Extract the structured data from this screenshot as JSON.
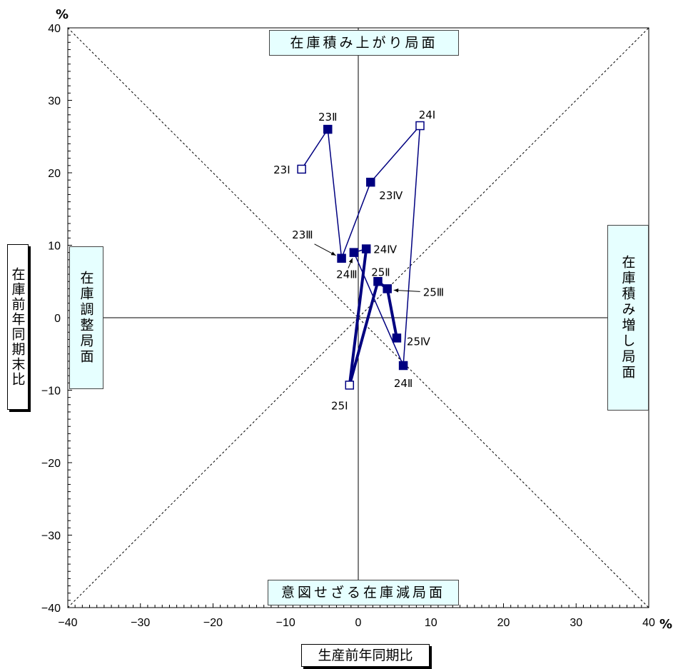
{
  "chart_data": {
    "type": "scatter",
    "xlabel": "生産前年同期比",
    "ylabel": "在庫前年同期末比",
    "x_unit": "%",
    "y_unit": "%",
    "xlim": [
      -40,
      40
    ],
    "ylim": [
      -40,
      40
    ],
    "xticks": [
      "−40",
      "−30",
      "−20",
      "−10",
      "0",
      "10",
      "20",
      "30",
      "40"
    ],
    "yticks": [
      "−40",
      "−30",
      "−20",
      "−10",
      "0",
      "10",
      "20",
      "30",
      "40"
    ],
    "points": [
      {
        "label": "23Ⅰ",
        "x": -7.8,
        "y": 20.5,
        "filled": false
      },
      {
        "label": "23Ⅱ",
        "x": -4.2,
        "y": 26.0,
        "filled": true
      },
      {
        "label": "23Ⅲ",
        "x": -2.3,
        "y": 8.2,
        "filled": true
      },
      {
        "label": "23Ⅳ",
        "x": 1.7,
        "y": 18.7,
        "filled": true
      },
      {
        "label": "24Ⅰ",
        "x": 8.5,
        "y": 26.5,
        "filled": false
      },
      {
        "label": "24Ⅱ",
        "x": 6.2,
        "y": -6.6,
        "filled": true
      },
      {
        "label": "24Ⅲ",
        "x": -0.6,
        "y": 9.0,
        "filled": true
      },
      {
        "label": "24Ⅳ",
        "x": 1.1,
        "y": 9.5,
        "filled": true
      },
      {
        "label": "25Ⅰ",
        "x": -1.2,
        "y": -9.3,
        "filled": false
      },
      {
        "label": "25Ⅱ",
        "x": 2.7,
        "y": 5.0,
        "filled": true
      },
      {
        "label": "25Ⅲ",
        "x": 4.0,
        "y": 4.0,
        "filled": true
      },
      {
        "label": "25Ⅳ",
        "x": 5.3,
        "y": -2.8,
        "filled": true
      }
    ],
    "grid": false
  },
  "quadrants": {
    "top": "在庫積み上がり局面",
    "bottom": "意図せざる在庫減局面",
    "left": "在庫調整局面",
    "right": "在庫積み増し局面"
  },
  "colors": {
    "series": "#000080",
    "box_fill": "#e6ffff"
  }
}
